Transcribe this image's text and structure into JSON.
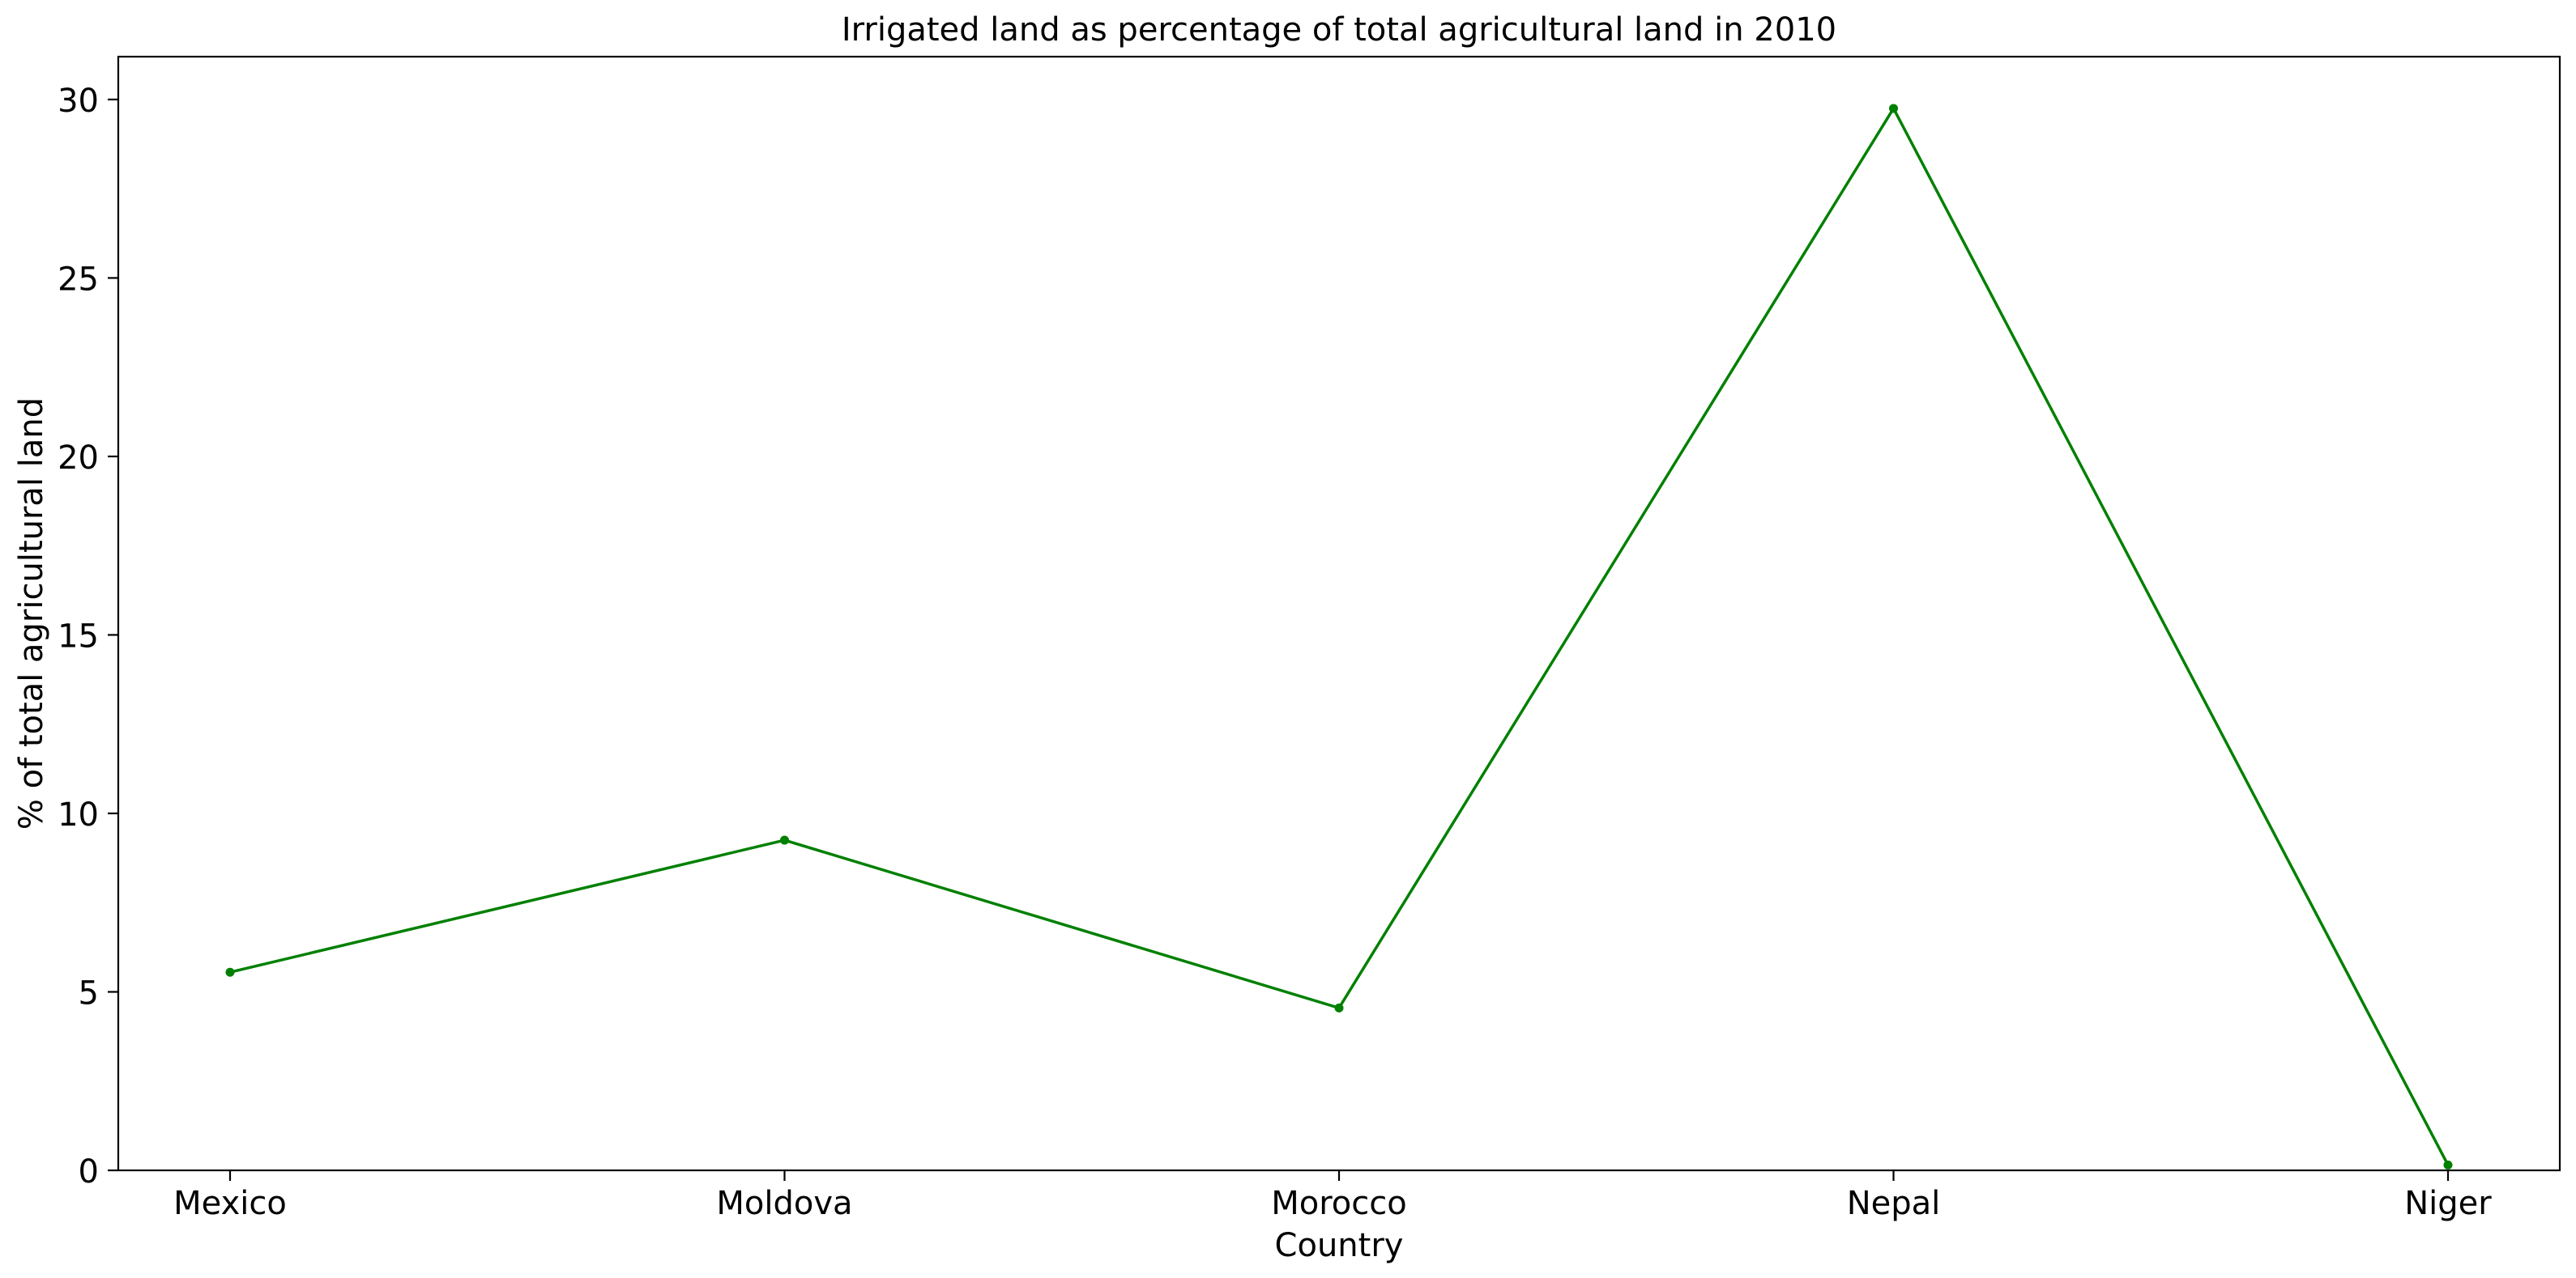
{
  "chart_data": {
    "type": "line",
    "title": "Irrigated land as percentage of total agricultural land in 2010",
    "xlabel": "Country",
    "ylabel": "% of total agricultural land",
    "categories": [
      "Mexico",
      "Moldova",
      "Morocco",
      "Nepal",
      "Niger"
    ],
    "series": [
      {
        "values": [
          5.55,
          9.25,
          4.55,
          29.75,
          0.15
        ],
        "color": "#008000",
        "marker": "circle"
      }
    ],
    "ylim": [
      0,
      31.2
    ],
    "yticks": [
      0,
      5,
      10,
      15,
      20,
      25,
      30
    ],
    "grid": false,
    "legend": "none"
  }
}
